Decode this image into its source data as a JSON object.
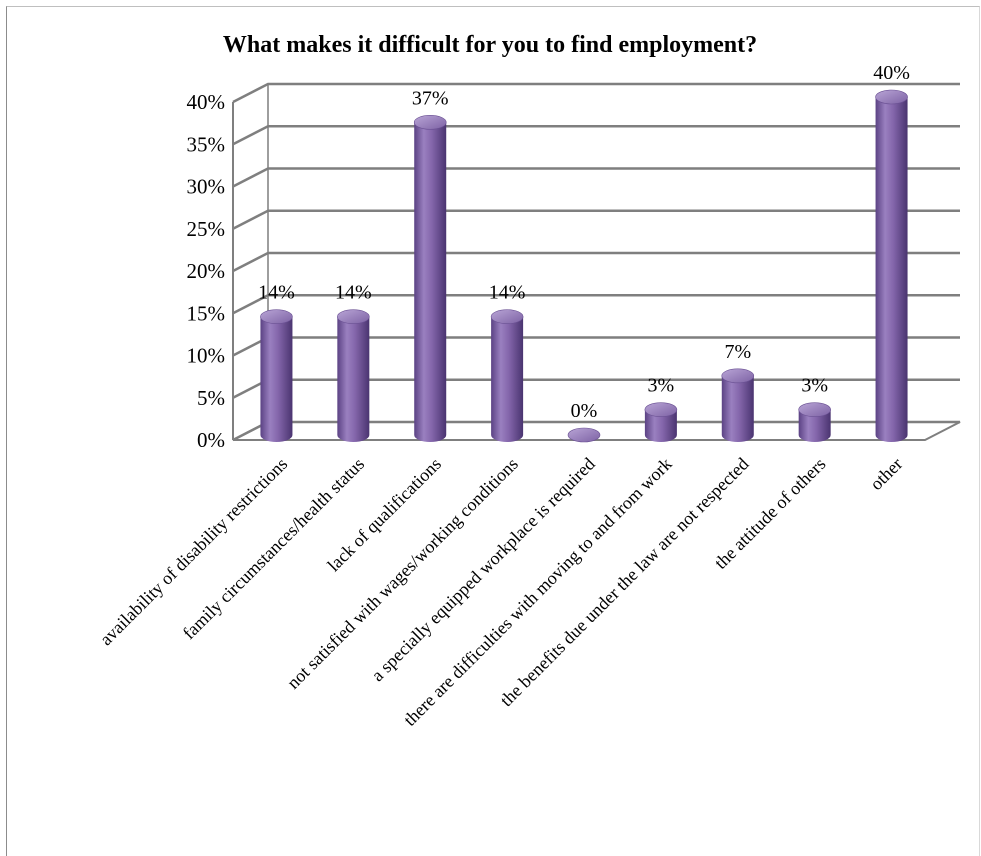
{
  "chart_data": {
    "type": "bar",
    "title": "What makes it difficult for you to find employment?",
    "categories": [
      "availability of disability restrictions",
      "family circumstances/health status",
      "lack of qualifications",
      "not satisfied with wages/working conditions",
      "a specially equipped workplace is required",
      "there are difficulties with moving to and from work",
      "the benefits due under the law are not respected",
      "the attitude of others",
      "other"
    ],
    "values": [
      14,
      14,
      37,
      14,
      0,
      3,
      7,
      3,
      40
    ],
    "data_labels": [
      "14%",
      "14%",
      "37%",
      "14%",
      "0%",
      "3%",
      "7%",
      "3%",
      "40%"
    ],
    "y_ticks": [
      "0%",
      "5%",
      "10%",
      "15%",
      "20%",
      "25%",
      "30%",
      "35%",
      "40%"
    ],
    "ylim": [
      0,
      40
    ],
    "grid": true,
    "legend": "none",
    "bar_color": "#8064a2",
    "style": "3d-cylinder"
  }
}
